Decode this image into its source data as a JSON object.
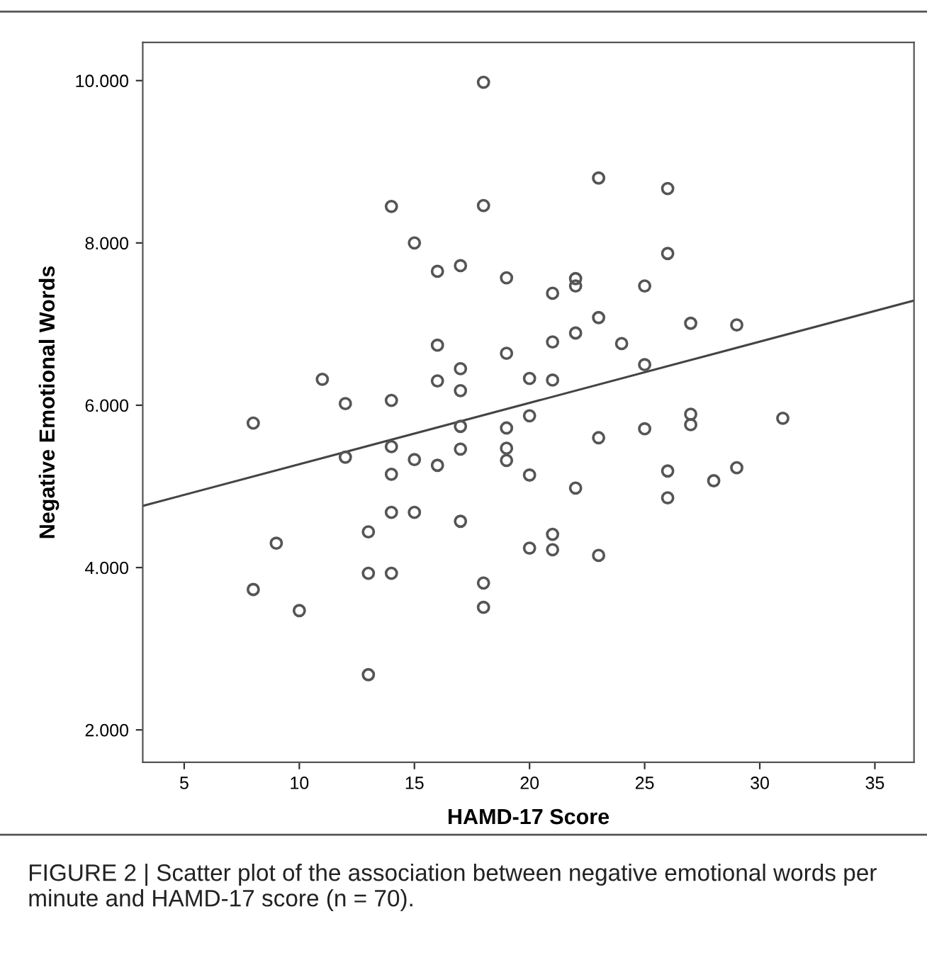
{
  "chart_data": {
    "type": "scatter",
    "xlabel": "HAMD-17 Score",
    "ylabel": "Negative Emotional Words",
    "annotations": [
      "FIGURE 2 | Scatter plot of the association between negative emotional words per minute and HAMD-17 score (n = 70)."
    ],
    "xlim": [
      3.2,
      36.7
    ],
    "ylim": [
      1.6,
      10.47
    ],
    "xticks": [
      5,
      10,
      15,
      20,
      25,
      30,
      35
    ],
    "yticks": [
      {
        "value": 2,
        "label": "2.000"
      },
      {
        "value": 4,
        "label": "4.000"
      },
      {
        "value": 6,
        "label": "6.000"
      },
      {
        "value": 8,
        "label": "8.000"
      },
      {
        "value": 10,
        "label": "10.000"
      }
    ],
    "grid": false,
    "series": [
      {
        "marker": "circle",
        "color": "#555555",
        "x": [
          8,
          8,
          9,
          10,
          11,
          12,
          12,
          13,
          13,
          13,
          14,
          14,
          14,
          14,
          14,
          14,
          15,
          15,
          15,
          16,
          16,
          16,
          16,
          17,
          17,
          17,
          17,
          17,
          17,
          18,
          18,
          18,
          18,
          19,
          19,
          19,
          19,
          19,
          20,
          20,
          20,
          20,
          21,
          21,
          21,
          21,
          21,
          22,
          22,
          22,
          22,
          23,
          23,
          23,
          23,
          24,
          25,
          25,
          25,
          26,
          26,
          26,
          26,
          27,
          27,
          27,
          28,
          29,
          29,
          31
        ],
        "values": [
          5.78,
          3.73,
          4.3,
          3.47,
          6.32,
          6.02,
          5.36,
          4.44,
          3.93,
          2.68,
          8.45,
          6.06,
          5.49,
          5.15,
          4.68,
          3.93,
          8.0,
          5.33,
          4.68,
          7.65,
          6.74,
          6.3,
          5.26,
          7.72,
          6.45,
          6.18,
          5.74,
          5.46,
          4.57,
          9.98,
          8.46,
          3.81,
          3.51,
          7.57,
          6.64,
          5.72,
          5.47,
          5.32,
          6.33,
          5.87,
          5.14,
          4.24,
          7.38,
          6.78,
          6.31,
          4.41,
          4.22,
          7.56,
          7.47,
          6.89,
          4.98,
          8.8,
          7.08,
          5.6,
          4.15,
          6.76,
          7.47,
          6.5,
          5.71,
          8.67,
          7.87,
          5.19,
          4.86,
          7.01,
          5.89,
          5.76,
          5.07,
          6.99,
          5.23,
          5.84
        ]
      },
      {
        "type": "line",
        "marker": "none",
        "color": "#444444",
        "x": [
          3.2,
          36.7
        ],
        "values": [
          4.76,
          7.29
        ]
      }
    ]
  }
}
